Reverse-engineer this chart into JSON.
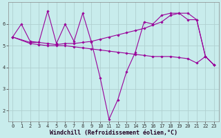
{
  "xlabel": "Windchill (Refroidissement éolien,°C)",
  "background_color": "#c8ecec",
  "line_color": "#990099",
  "grid_color": "#b0d0d0",
  "xlim": [
    -0.5,
    23.5
  ],
  "ylim": [
    1.5,
    7.0
  ],
  "yticks": [
    2,
    3,
    4,
    5,
    6
  ],
  "xticks": [
    0,
    1,
    2,
    3,
    4,
    5,
    6,
    7,
    8,
    9,
    10,
    11,
    12,
    13,
    14,
    15,
    16,
    17,
    18,
    19,
    20,
    21,
    22,
    23
  ],
  "lines": [
    {
      "x": [
        0,
        1,
        2,
        3,
        4,
        5,
        6,
        7,
        8,
        9,
        10,
        11,
        12,
        13,
        14,
        15,
        16,
        17,
        18,
        19,
        20,
        21,
        22,
        23
      ],
      "y": [
        5.4,
        6.0,
        5.2,
        5.15,
        6.6,
        5.1,
        6.0,
        5.2,
        6.5,
        5.15,
        3.5,
        1.6,
        2.5,
        3.8,
        4.7,
        6.1,
        6.0,
        6.4,
        6.5,
        6.5,
        6.2,
        6.2,
        4.5,
        4.1
      ]
    },
    {
      "x": [
        0,
        2,
        3,
        4,
        5,
        6,
        7,
        8,
        9,
        10,
        11,
        12,
        13,
        14,
        15,
        16,
        17,
        18,
        19,
        20,
        21,
        22,
        23
      ],
      "y": [
        5.4,
        5.15,
        5.15,
        5.1,
        5.05,
        5.1,
        5.1,
        5.15,
        5.2,
        5.3,
        5.4,
        5.5,
        5.6,
        5.7,
        5.8,
        5.95,
        6.1,
        6.4,
        6.5,
        6.5,
        6.2,
        4.5,
        4.1
      ]
    },
    {
      "x": [
        0,
        2,
        3,
        4,
        5,
        6,
        7,
        8,
        9,
        10,
        11,
        12,
        13,
        14,
        15,
        16,
        17,
        18,
        19,
        20,
        21,
        22,
        23
      ],
      "y": [
        5.4,
        5.1,
        5.05,
        5.0,
        5.0,
        5.0,
        4.95,
        4.9,
        4.85,
        4.8,
        4.75,
        4.7,
        4.65,
        4.6,
        4.55,
        4.5,
        4.5,
        4.5,
        4.45,
        4.4,
        4.2,
        4.5,
        4.1
      ]
    }
  ],
  "tick_fontsize": 5.0,
  "label_fontsize": 6.0
}
